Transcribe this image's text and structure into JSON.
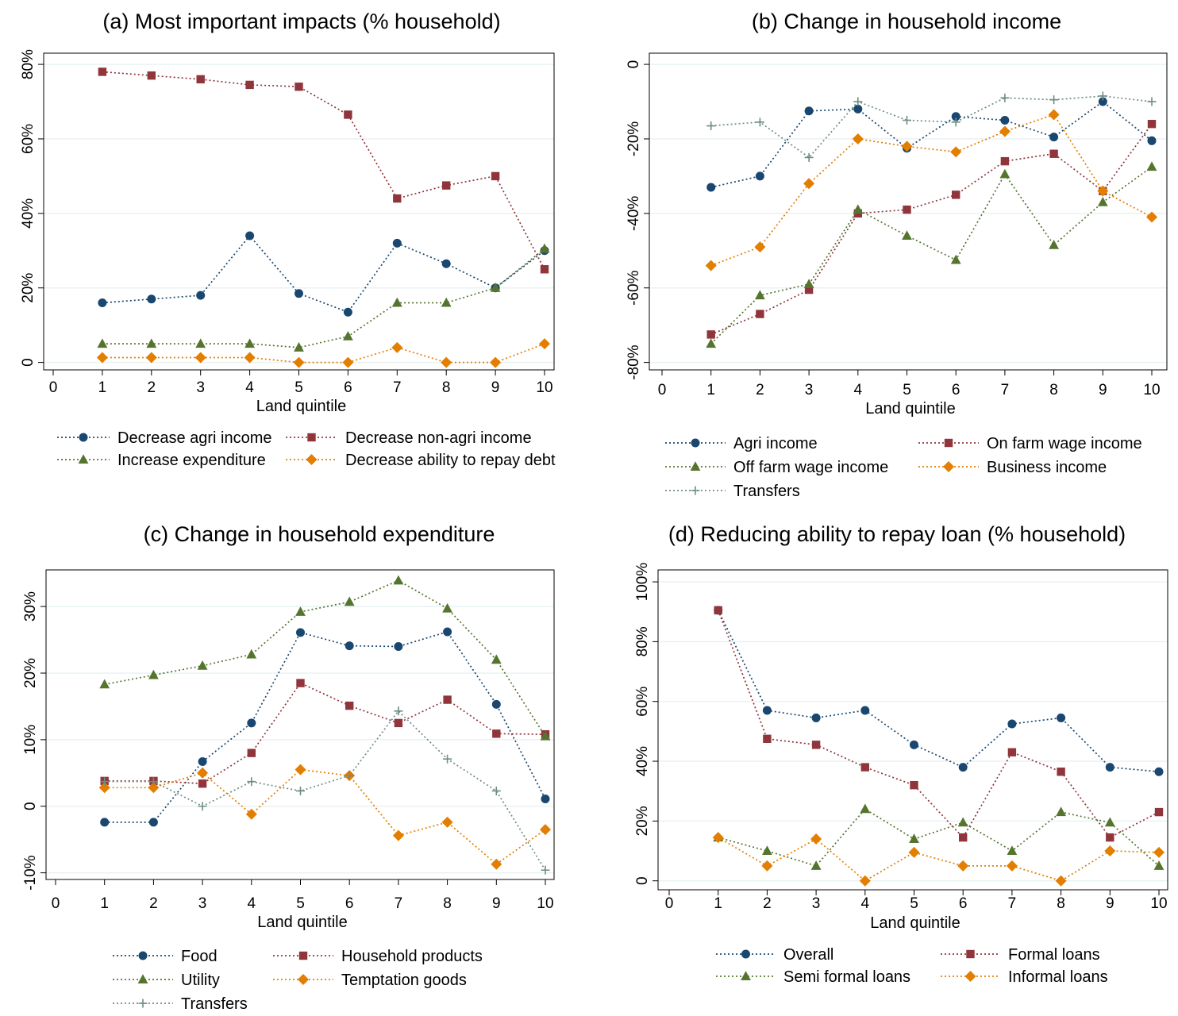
{
  "figure": {
    "colors": {
      "blue": "#1a476f",
      "maroon": "#90353b",
      "green": "#55752f",
      "orange": "#e37e00",
      "gray": "#6e8e84",
      "grid": "#eaf2f3",
      "axis": "#000000"
    }
  },
  "chart_data": [
    {
      "type": "line",
      "title": "(a) Most important impacts (% household)",
      "xlabel": "Land quintile",
      "ylabel": "",
      "x_ticks": [
        "0",
        "1",
        "2",
        "3",
        "4",
        "5",
        "6",
        "7",
        "8",
        "9",
        "10"
      ],
      "y_ticks": [
        {
          "value": 0,
          "label": "0"
        },
        {
          "value": 20,
          "label": "20%"
        },
        {
          "value": 40,
          "label": "40%"
        },
        {
          "value": 60,
          "label": "60%"
        },
        {
          "value": 80,
          "label": "80%"
        }
      ],
      "xlim": [
        0,
        10
      ],
      "ylim": [
        -2,
        83
      ],
      "grid": true,
      "legend_position": "bottom",
      "legend_columns": 2,
      "x": [
        1,
        2,
        3,
        4,
        5,
        6,
        7,
        8,
        9,
        10
      ],
      "series": [
        {
          "name": "Decrease agri income",
          "color": "blue",
          "marker": "circle",
          "values": [
            16,
            17,
            18,
            34,
            18.5,
            13.5,
            32,
            26.5,
            20,
            30
          ]
        },
        {
          "name": "Decrease non-agri income",
          "color": "maroon",
          "marker": "square",
          "values": [
            78,
            77,
            76,
            74.5,
            74,
            66.5,
            44,
            47.5,
            50,
            25
          ]
        },
        {
          "name": "Increase expenditure",
          "color": "green",
          "marker": "triangle",
          "values": [
            5,
            5,
            5,
            5,
            4,
            7,
            16,
            16,
            20,
            30.5
          ]
        },
        {
          "name": "Decrease ability to repay debt",
          "color": "orange",
          "marker": "diamond",
          "values": [
            1.3,
            1.3,
            1.3,
            1.3,
            0,
            0,
            4,
            0,
            0,
            5
          ]
        }
      ]
    },
    {
      "type": "line",
      "title": "(b) Change in household income",
      "xlabel": "Land quintile",
      "ylabel": "",
      "x_ticks": [
        "0",
        "1",
        "2",
        "3",
        "4",
        "5",
        "6",
        "7",
        "8",
        "9",
        "10"
      ],
      "y_ticks": [
        {
          "value": 0,
          "label": "0"
        },
        {
          "value": -20,
          "label": "-20%"
        },
        {
          "value": -40,
          "label": "-40%"
        },
        {
          "value": -60,
          "label": "-60%"
        },
        {
          "value": -80,
          "label": "-80%"
        }
      ],
      "xlim": [
        0,
        10
      ],
      "ylim": [
        -82,
        3
      ],
      "grid": true,
      "legend_position": "bottom",
      "legend_columns": 2,
      "x": [
        1,
        2,
        3,
        4,
        5,
        6,
        7,
        8,
        9,
        10
      ],
      "series": [
        {
          "name": "Agri income",
          "color": "blue",
          "marker": "circle",
          "values": [
            -33,
            -30,
            -12.5,
            -12,
            -22.5,
            -14,
            -15,
            -19.5,
            -10,
            -20.5
          ]
        },
        {
          "name": "On farm wage income",
          "color": "maroon",
          "marker": "square",
          "values": [
            -72.5,
            -67,
            -60.5,
            -40,
            -39,
            -35,
            -26,
            -24,
            -34,
            -16
          ]
        },
        {
          "name": "Off farm wage income",
          "color": "green",
          "marker": "triangle",
          "values": [
            -75,
            -62,
            -59,
            -39,
            -46,
            -52.5,
            -29.5,
            -48.5,
            -37,
            -27.5
          ]
        },
        {
          "name": "Business income",
          "color": "orange",
          "marker": "diamond",
          "values": [
            -54,
            -49,
            -32,
            -20,
            -22,
            -23.5,
            -18,
            -13.5,
            -34,
            -41
          ]
        },
        {
          "name": "Transfers",
          "color": "gray",
          "marker": "plus",
          "values": [
            -16.5,
            -15.5,
            -25,
            -10,
            -15,
            -15.5,
            -9,
            -9.5,
            -8.5,
            -10
          ]
        }
      ]
    },
    {
      "type": "line",
      "title": "(c) Change in household expenditure",
      "xlabel": "Land quintile",
      "ylabel": "",
      "x_ticks": [
        "0",
        "1",
        "2",
        "3",
        "4",
        "5",
        "6",
        "7",
        "8",
        "9",
        "10"
      ],
      "y_ticks": [
        {
          "value": -10,
          "label": "-10%"
        },
        {
          "value": 0,
          "label": "0"
        },
        {
          "value": 10,
          "label": "10%"
        },
        {
          "value": 20,
          "label": "20%"
        },
        {
          "value": 30,
          "label": "30%"
        }
      ],
      "xlim": [
        0,
        10
      ],
      "ylim": [
        -11,
        35.5
      ],
      "grid": true,
      "legend_position": "bottom",
      "legend_columns": 2,
      "x": [
        1,
        2,
        3,
        4,
        5,
        6,
        7,
        8,
        9,
        10
      ],
      "series": [
        {
          "name": "Food",
          "color": "blue",
          "marker": "circle",
          "values": [
            -2.4,
            -2.4,
            6.7,
            12.5,
            26.1,
            24.1,
            24,
            26.2,
            15.3,
            1.1
          ]
        },
        {
          "name": "Household products",
          "color": "maroon",
          "marker": "square",
          "values": [
            3.8,
            3.8,
            3.4,
            8,
            18.5,
            15.1,
            12.5,
            16,
            10.9,
            10.8
          ]
        },
        {
          "name": "Utility",
          "color": "green",
          "marker": "triangle",
          "values": [
            18.3,
            19.7,
            21.1,
            22.8,
            29.2,
            30.7,
            33.9,
            29.7,
            22,
            10.5
          ]
        },
        {
          "name": "Temptation goods",
          "color": "orange",
          "marker": "diamond",
          "values": [
            2.8,
            2.8,
            5,
            -1.2,
            5.5,
            4.6,
            -4.4,
            -2.4,
            -8.7,
            -3.5
          ]
        },
        {
          "name": "Transfers",
          "color": "gray",
          "marker": "plus",
          "values": [
            3.7,
            3.7,
            0,
            3.7,
            2.3,
            4.6,
            14.3,
            7.1,
            2.3,
            -9.6
          ]
        }
      ]
    },
    {
      "type": "line",
      "title": "(d) Reducing ability to repay loan (% household)",
      "xlabel": "Land quintile",
      "ylabel": "",
      "x_ticks": [
        "0",
        "1",
        "2",
        "3",
        "4",
        "5",
        "6",
        "7",
        "8",
        "9",
        "10"
      ],
      "y_ticks": [
        {
          "value": 0,
          "label": "0"
        },
        {
          "value": 20,
          "label": "20%"
        },
        {
          "value": 40,
          "label": "40%"
        },
        {
          "value": 60,
          "label": "60%"
        },
        {
          "value": 80,
          "label": "80%"
        },
        {
          "value": 100,
          "label": "100%"
        }
      ],
      "xlim": [
        0,
        10
      ],
      "ylim": [
        -3,
        104
      ],
      "grid": true,
      "legend_position": "bottom",
      "legend_columns": 2,
      "x": [
        1,
        2,
        3,
        4,
        5,
        6,
        7,
        8,
        9,
        10
      ],
      "series": [
        {
          "name": "Overall",
          "color": "blue",
          "marker": "circle",
          "values": [
            90.5,
            57,
            54.5,
            57,
            45.5,
            38,
            52.5,
            54.5,
            38,
            36.5
          ]
        },
        {
          "name": "Formal loans",
          "color": "maroon",
          "marker": "square",
          "values": [
            90.5,
            47.5,
            45.5,
            38,
            32,
            14.5,
            43,
            36.5,
            14.5,
            23
          ]
        },
        {
          "name": "Semi formal loans",
          "color": "green",
          "marker": "triangle",
          "values": [
            14.5,
            10,
            5,
            24,
            14,
            19.5,
            10,
            23,
            19.5,
            5
          ]
        },
        {
          "name": "Informal loans",
          "color": "orange",
          "marker": "diamond",
          "values": [
            14.5,
            5,
            14,
            0,
            9.5,
            5,
            5,
            0,
            10,
            9.5
          ]
        }
      ]
    }
  ]
}
